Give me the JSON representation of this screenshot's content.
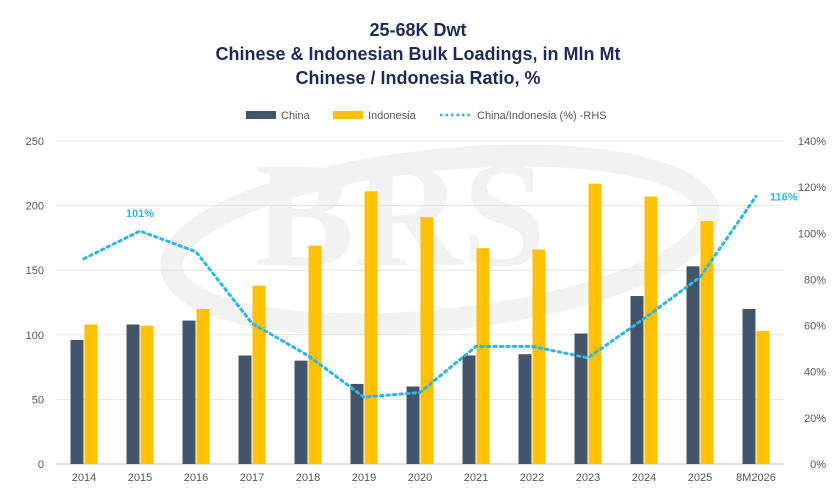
{
  "chart_data": {
    "type": "bar",
    "title": [
      "25-68K Dwt",
      "Chinese & Indonesian Bulk Loadings, in Mln Mt",
      "Chinese / Indonesia Ratio, %"
    ],
    "watermark": "BRS",
    "categories": [
      "2014",
      "2015",
      "2016",
      "2017",
      "2018",
      "2019",
      "2020",
      "2021",
      "2022",
      "2023",
      "2024",
      "2025",
      "8M2026"
    ],
    "series": [
      {
        "name": "China",
        "kind": "bar",
        "axis": "left",
        "color": "#44546a",
        "values": [
          96,
          108,
          111,
          84,
          80,
          62,
          60,
          84,
          85,
          101,
          130,
          153,
          120
        ]
      },
      {
        "name": "Indonesia",
        "kind": "bar",
        "axis": "left",
        "color": "#ffc000",
        "values": [
          108,
          107,
          120,
          138,
          169,
          211,
          191,
          167,
          166,
          217,
          207,
          188,
          103
        ]
      },
      {
        "name": "China/Indonesia (%) -RHS",
        "kind": "line",
        "style": "dotted",
        "axis": "right",
        "color": "#2fb5e6",
        "values": [
          89,
          101,
          92,
          61,
          47,
          29,
          31,
          51,
          51,
          46,
          63,
          81,
          116
        ]
      }
    ],
    "y_left": {
      "min": 0,
      "max": 250,
      "ticks": [
        "0",
        "50",
        "100",
        "150",
        "200",
        "250"
      ]
    },
    "y_right": {
      "min": 0,
      "max": 140,
      "ticks": [
        "0%",
        "20%",
        "40%",
        "60%",
        "80%",
        "100%",
        "120%",
        "140%"
      ]
    },
    "annotations": [
      {
        "category": "2015",
        "series": "China/Indonesia (%) -RHS",
        "text": "101%"
      },
      {
        "category": "8M2026",
        "series": "China/Indonesia (%) -RHS",
        "text": "116%"
      }
    ],
    "legend": "top-center",
    "grid": true
  }
}
